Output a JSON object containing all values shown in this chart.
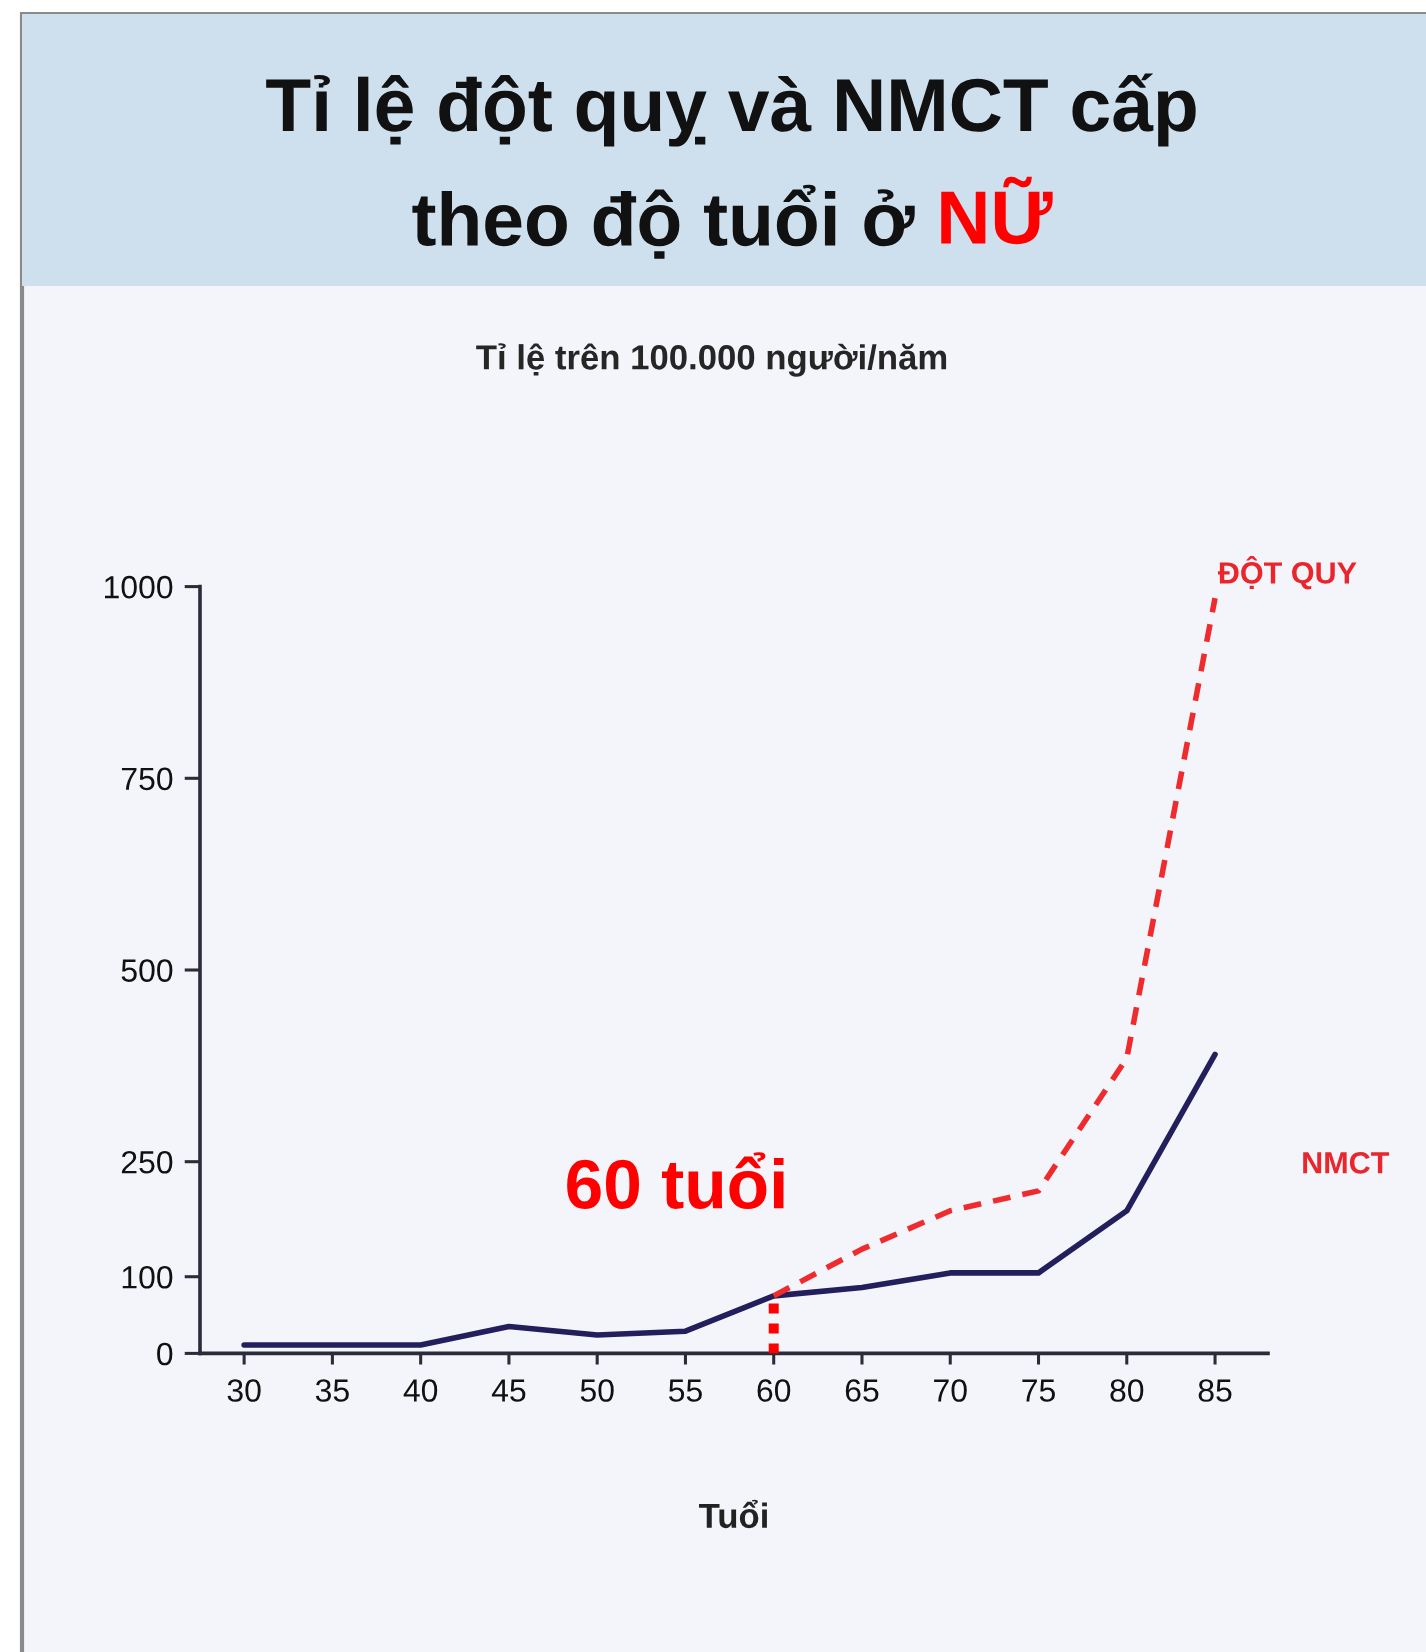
{
  "chart_data": {
    "type": "line",
    "title": "Tỉ lệ đột quỵ và NMCT cấp\ntheo độ tuổi ở NỮ",
    "subtitle": "Tỉ lệ trên 100.000 người/năm",
    "xlabel": "Tuổi",
    "categories": [
      "30",
      "35",
      "40",
      "45",
      "50",
      "55",
      "60",
      "65",
      "70",
      "75",
      "80",
      "85"
    ],
    "series": [
      {
        "name": "NMCT",
        "color": "#231f5c",
        "line_style": "solid",
        "values": [
          11,
          11,
          11,
          35,
          24,
          29,
          75,
          86,
          105,
          105,
          186,
          390
        ]
      },
      {
        "name": "ĐỘT QUY",
        "color": "#ef2b2d",
        "line_style": "dashed",
        "values": [
          null,
          null,
          null,
          null,
          null,
          null,
          75,
          136,
          186,
          212,
          385,
          985
        ]
      }
    ],
    "ylim": [
      0,
      1000
    ],
    "yticks": [
      0,
      100,
      250,
      500,
      750,
      1000
    ],
    "ref_lines": [
      {
        "axis": "x",
        "value": "60",
        "label": "60 tuổi",
        "color": "#ff0000",
        "line_style": "dotted"
      }
    ]
  }
}
